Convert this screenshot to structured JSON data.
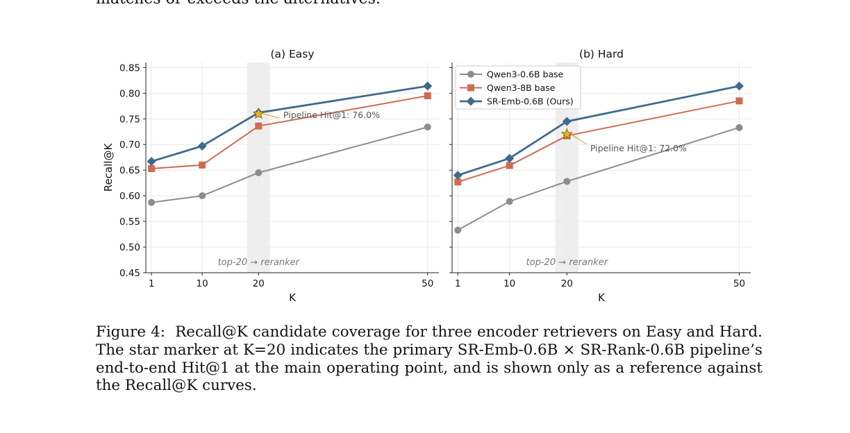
{
  "header_fragment": "matches or exceeds the alternatives.",
  "caption": {
    "label": "Figure 4:",
    "text": "Recall@K candidate coverage for three encoder retrievers on Easy and Hard. The star marker at K=20 indicates the primary SR-Emb-0.6B × SR-Rank-0.6B pipeline’s end-to-end Hit@1 at the main operating point, and is shown only as a reference against the Recall@K curves."
  },
  "colors": {
    "qwen06": "#8c8c8c",
    "qwen8": "#cf6b51",
    "sremb": "#3f6a8c",
    "star": "#e8b324",
    "shade": "#eeeeee",
    "grid": "#e9e9e9"
  },
  "chart_data": [
    {
      "type": "line",
      "title": "(a) Easy",
      "xlabel": "K",
      "ylabel": "Recall@K",
      "x": [
        1,
        10,
        20,
        50
      ],
      "xticks": [
        1,
        10,
        20,
        50
      ],
      "ylim": [
        0.45,
        0.86
      ],
      "yticks": [
        0.45,
        0.5,
        0.55,
        0.6,
        0.65,
        0.7,
        0.75,
        0.8,
        0.85
      ],
      "ytick_labels": [
        "0.45",
        "0.50",
        "0.55",
        "0.60",
        "0.65",
        "0.70",
        "0.75",
        "0.80",
        "0.85"
      ],
      "grid": true,
      "series": [
        {
          "name": "Qwen3-0.6B base",
          "marker": "circle",
          "color_key": "qwen06",
          "values": [
            0.587,
            0.6,
            0.645,
            0.734
          ]
        },
        {
          "name": "Qwen3-8B base",
          "marker": "square",
          "color_key": "qwen8",
          "values": [
            0.653,
            0.66,
            0.736,
            0.795
          ]
        },
        {
          "name": "SR-Emb-0.6B (Ours)",
          "marker": "diamond",
          "color_key": "sremb",
          "values": [
            0.667,
            0.697,
            0.762,
            0.814
          ]
        }
      ],
      "shaded_band": {
        "x_from": 18,
        "x_to": 22,
        "label": "top-20 → reranker"
      },
      "star": {
        "x": 20,
        "y": 0.76,
        "label": "Pipeline Hit@1: 76.0%"
      },
      "legend": null
    },
    {
      "type": "line",
      "title": "(b) Hard",
      "xlabel": "K",
      "ylabel": "",
      "x": [
        1,
        10,
        20,
        50
      ],
      "xticks": [
        1,
        10,
        20,
        50
      ],
      "ylim": [
        0.45,
        0.86
      ],
      "yticks": [
        0.45,
        0.5,
        0.55,
        0.6,
        0.65,
        0.7,
        0.75,
        0.8,
        0.85
      ],
      "ytick_labels": [],
      "grid": true,
      "series": [
        {
          "name": "Qwen3-0.6B base",
          "marker": "circle",
          "color_key": "qwen06",
          "values": [
            0.533,
            0.589,
            0.628,
            0.733
          ]
        },
        {
          "name": "Qwen3-8B base",
          "marker": "square",
          "color_key": "qwen8",
          "values": [
            0.627,
            0.659,
            0.717,
            0.785
          ]
        },
        {
          "name": "SR-Emb-0.6B (Ours)",
          "marker": "diamond",
          "color_key": "sremb",
          "values": [
            0.64,
            0.673,
            0.745,
            0.814
          ]
        }
      ],
      "shaded_band": {
        "x_from": 18,
        "x_to": 22,
        "label": "top-20 → reranker"
      },
      "star": {
        "x": 20,
        "y": 0.72,
        "label": "Pipeline Hit@1: 72.0%"
      },
      "legend": "top-left"
    }
  ]
}
